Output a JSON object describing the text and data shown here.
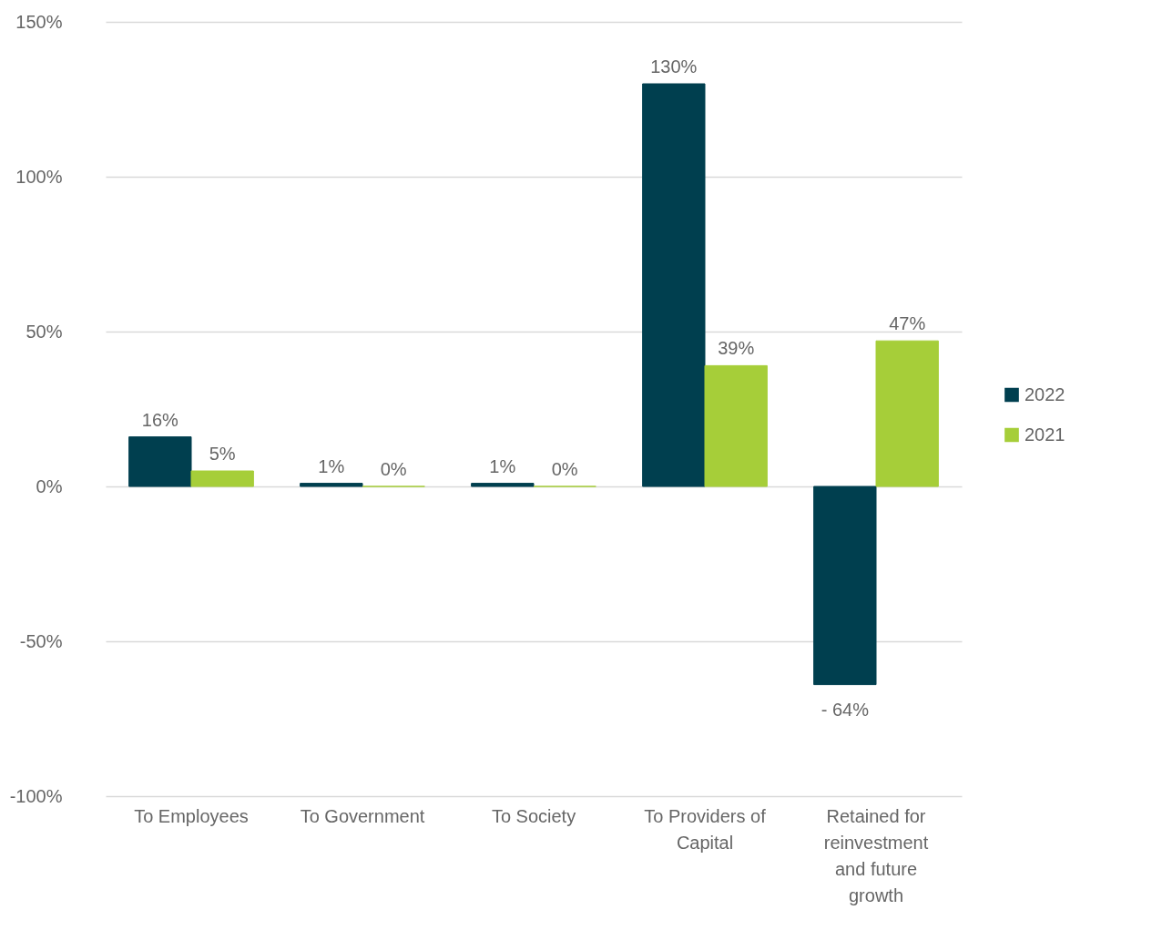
{
  "chart_data": {
    "type": "bar",
    "categories": [
      "To Employees",
      "To Government",
      "To Society",
      "To Providers of Capital",
      "Retained for reinvestment and future growth"
    ],
    "series": [
      {
        "name": "2022",
        "color": "#003f4f",
        "values": [
          16,
          1,
          1,
          130,
          -64
        ],
        "value_labels": [
          "16%",
          "1%",
          "1%",
          "130%",
          "- 64%"
        ]
      },
      {
        "name": "2021",
        "color": "#a6ce39",
        "values": [
          5,
          0,
          0,
          39,
          47
        ],
        "value_labels": [
          "5%",
          "0%",
          "0%",
          "39%",
          "47%"
        ]
      }
    ],
    "ylim": [
      -100,
      150
    ],
    "yticks": [
      {
        "value": -100,
        "label": "-100%"
      },
      {
        "value": -50,
        "label": "-50%"
      },
      {
        "value": 0,
        "label": "0%"
      },
      {
        "value": 50,
        "label": "50%"
      },
      {
        "value": 100,
        "label": "100%"
      },
      {
        "value": 150,
        "label": "150%"
      }
    ],
    "grid": "y",
    "legend": "right"
  }
}
